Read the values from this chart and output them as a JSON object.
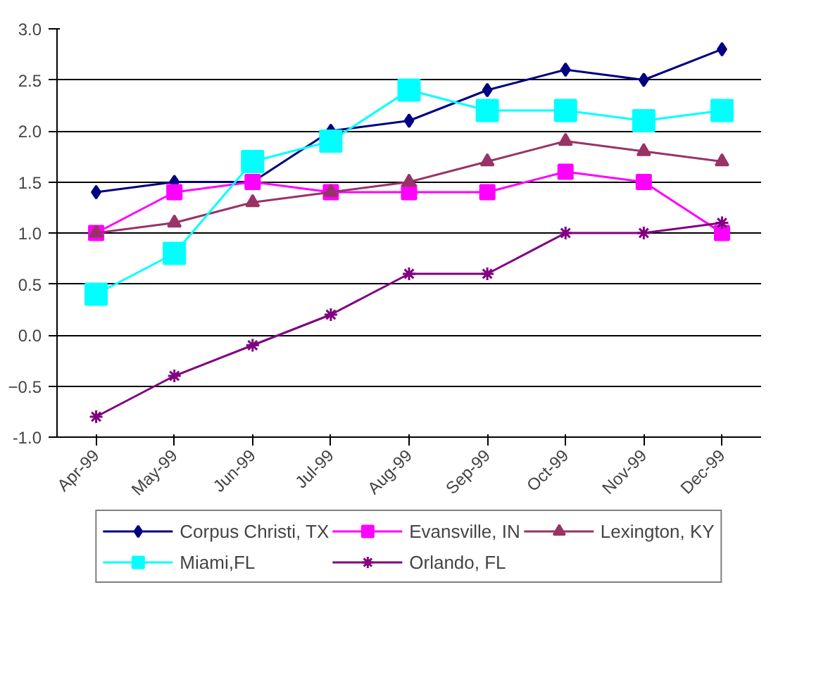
{
  "chart_data": {
    "type": "line",
    "categories": [
      "Apr-99",
      "May-99",
      "Jun-99",
      "Jul-99",
      "Aug-99",
      "Sep-99",
      "Oct-99",
      "Nov-99",
      "Dec-99"
    ],
    "series": [
      {
        "name": "Corpus Christi, TX",
        "color": "#000080",
        "marker": "diamond",
        "values": [
          1.4,
          1.5,
          1.5,
          2.0,
          2.1,
          2.4,
          2.6,
          2.5,
          2.8
        ]
      },
      {
        "name": "Evansville, IN",
        "color": "#ff00ff",
        "marker": "square",
        "values": [
          1.0,
          1.4,
          1.5,
          1.4,
          1.4,
          1.4,
          1.6,
          1.5,
          1.0
        ]
      },
      {
        "name": "Lexington, KY",
        "color": "#993366",
        "marker": "triangle",
        "values": [
          1.0,
          1.1,
          1.3,
          1.4,
          1.5,
          1.7,
          1.9,
          1.8,
          1.7
        ]
      },
      {
        "name": "Miami,FL",
        "color": "#00ffff",
        "marker": "square",
        "values": [
          0.4,
          0.8,
          1.7,
          1.9,
          2.4,
          2.2,
          2.2,
          2.1,
          2.2
        ]
      },
      {
        "name": "Orlando, FL",
        "color": "#800080",
        "marker": "cross",
        "values": [
          -0.8,
          -0.4,
          -0.1,
          0.2,
          0.6,
          0.6,
          1.0,
          1.0,
          1.1
        ]
      }
    ],
    "ylim": [
      -1,
      3
    ],
    "yticks": [
      {
        "value": -1,
        "label": "-1.0"
      },
      -0.5,
      {
        "value": 0,
        "label": "0.0"
      },
      0.5,
      {
        "value": 1,
        "label": "1.0"
      },
      1.5,
      {
        "value": 2,
        "label": "2.0"
      },
      2.5,
      {
        "value": 3,
        "label": "3.0"
      }
    ],
    "grid": "y",
    "legend": "bottom",
    "line_style": "solid"
  }
}
